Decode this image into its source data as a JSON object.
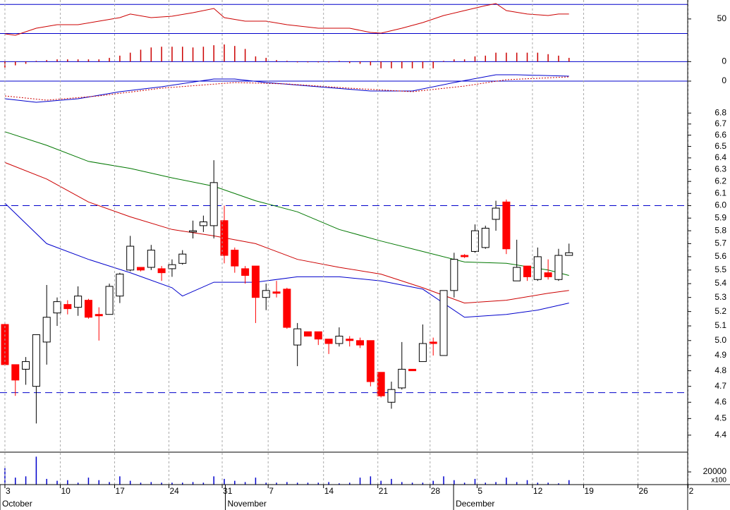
{
  "chart_data": [
    {
      "type": "line",
      "xlim": [
        -0.47,
        65.36
      ],
      "ylim": [
        16,
        76
      ],
      "yticks": [
        50
      ],
      "levels": [
        70,
        30
      ],
      "level_color": "#0000cc",
      "series": [
        {
          "color": "#cc0000",
          "x": [
            0,
            1,
            3,
            5,
            7,
            9,
            11,
            12,
            14,
            16,
            18,
            20,
            21,
            23,
            25,
            27,
            30,
            33,
            35,
            36,
            38,
            40,
            42,
            44,
            46,
            47,
            48,
            50,
            52,
            53,
            54
          ],
          "values": [
            29.5,
            27.6,
            37.3,
            42.1,
            42.1,
            47,
            51.8,
            56.7,
            51.8,
            53.7,
            58.6,
            64.4,
            51.8,
            47,
            47,
            42.1,
            37.3,
            37.3,
            31.5,
            30.5,
            37.3,
            45,
            54.7,
            61.5,
            68.3,
            71.2,
            61.5,
            56.7,
            54.7,
            56.7,
            56.7
          ]
        }
      ]
    },
    {
      "type": "bar",
      "xlim": [
        -0.47,
        65.36
      ],
      "ylim": [
        -1.2,
        2.4
      ],
      "yticks": [
        0
      ],
      "color": "#cc0000",
      "zero_color": "#0000cc",
      "x": [
        0,
        1,
        2,
        3,
        4,
        5,
        6,
        7,
        8,
        9,
        10,
        11,
        12,
        13,
        14,
        15,
        16,
        17,
        18,
        19,
        20,
        21,
        22,
        23,
        24,
        25,
        26,
        27,
        28,
        29,
        30,
        31,
        32,
        33,
        34,
        35,
        36,
        37,
        38,
        39,
        40,
        41,
        42,
        43,
        44,
        45,
        46,
        47,
        48,
        49,
        50,
        51,
        52,
        53,
        54
      ],
      "values": [
        -0.8,
        -0.5,
        -0.3,
        0.1,
        0.2,
        0.3,
        0.3,
        0.3,
        0.3,
        0.3,
        0.5,
        0.8,
        1.2,
        1.6,
        1.9,
        2.0,
        2.0,
        2.0,
        1.9,
        2.0,
        2.2,
        2.3,
        2.1,
        1.7,
        0.7,
        0.5,
        0.2,
        0.1,
        -0.1,
        -0.1,
        -0.1,
        -0.1,
        0.1,
        -0.2,
        -0.3,
        -0.5,
        -0.9,
        -0.9,
        -0.9,
        -0.9,
        -0.9,
        -0.9,
        0.1,
        0.3,
        0.3,
        0.7,
        0.8,
        1.2,
        1.2,
        1.2,
        1.2,
        1.2,
        1.0,
        0.8,
        0.5
      ]
    },
    {
      "type": "line",
      "xlim": [
        -0.47,
        65.36
      ],
      "ylim": [
        -3.3,
        1.5
      ],
      "yticks": [
        0
      ],
      "zero_color": "#0000cc",
      "series": [
        {
          "color": "#0000cc",
          "x": [
            0,
            3,
            7,
            11,
            15,
            20,
            22,
            25,
            30,
            35,
            39,
            43,
            47,
            49,
            54
          ],
          "values": [
            -2.5,
            -3.0,
            -2.5,
            -1.5,
            -0.8,
            0.3,
            0.3,
            -0.2,
            -0.8,
            -1.4,
            -1.4,
            -0.2,
            0.9,
            0.9,
            0.7
          ]
        },
        {
          "color": "#cc0000",
          "dashed": true,
          "x": [
            0,
            4,
            9,
            15,
            22,
            27,
            33,
            39,
            44,
            48,
            54
          ],
          "values": [
            -2.1,
            -2.7,
            -2.1,
            -1.0,
            -0.2,
            -0.4,
            -1.0,
            -1.5,
            -0.7,
            0.2,
            0.6
          ]
        }
      ]
    },
    {
      "type": "candlestick",
      "xlim": [
        -0.47,
        65.36
      ],
      "ylim": [
        4.3,
        6.88
      ],
      "log_scale": true,
      "yticks": [
        4.4,
        4.5,
        4.6,
        4.7,
        4.8,
        4.9,
        {
          "value": 5,
          "label": "5.0"
        },
        5.1,
        5.2,
        5.3,
        5.4,
        5.5,
        5.6,
        5.7,
        5.8,
        5.9,
        {
          "value": 6,
          "label": "6.0"
        },
        6.1,
        6.2,
        6.3,
        6.4,
        6.5,
        6.6,
        6.7,
        6.8
      ],
      "reference_lines": [
        6.0,
        4.66
      ],
      "reference_color": "#0000cc",
      "up_color": "#ffffff",
      "down_color": "#ff0000",
      "x": [
        0,
        1,
        2,
        3,
        4,
        5,
        6,
        7,
        8,
        9,
        10,
        11,
        12,
        13,
        14,
        15,
        16,
        17,
        18,
        19,
        20,
        21,
        22,
        23,
        24,
        25,
        26,
        27,
        28,
        29,
        30,
        31,
        32,
        33,
        34,
        35,
        36,
        37,
        38,
        39,
        40,
        41,
        42,
        43,
        44,
        45,
        46,
        47,
        48,
        49,
        50,
        51,
        52,
        53,
        54
      ],
      "open": [
        5.11,
        4.84,
        4.81,
        4.7,
        4.99,
        5.19,
        5.25,
        5.23,
        5.28,
        5.18,
        5.18,
        5.31,
        5.5,
        5.52,
        5.52,
        5.51,
        5.51,
        5.55,
        5.79,
        5.84,
        5.84,
        5.88,
        5.65,
        5.51,
        5.53,
        5.3,
        5.34,
        5.36,
        4.97,
        5.06,
        5.06,
        5.01,
        4.98,
        5.01,
        5.0,
        5.0,
        4.79,
        4.6,
        4.69,
        4.81,
        4.86,
        4.99,
        4.9,
        5.35,
        5.61,
        5.64,
        5.67,
        5.89,
        6.03,
        5.42,
        5.53,
        5.43,
        5.48,
        5.43,
        5.61
      ],
      "high": [
        5.12,
        4.84,
        4.89,
        5.04,
        5.39,
        5.3,
        5.28,
        5.38,
        5.29,
        5.23,
        5.4,
        5.48,
        5.76,
        5.52,
        5.69,
        5.53,
        5.58,
        5.65,
        5.88,
        5.92,
        6.38,
        6.0,
        5.67,
        5.53,
        5.53,
        5.4,
        5.42,
        5.37,
        5.12,
        5.06,
        5.06,
        5.01,
        5.09,
        5.03,
        5.02,
        5.0,
        4.79,
        4.73,
        4.99,
        4.81,
        5.11,
        5.02,
        5.35,
        5.63,
        5.62,
        5.85,
        5.84,
        6.04,
        6.05,
        5.73,
        5.53,
        5.67,
        5.58,
        5.66,
        5.7
      ],
      "low": [
        4.83,
        4.64,
        4.71,
        4.47,
        4.84,
        5.1,
        5.18,
        5.17,
        5.15,
        5.0,
        5.18,
        5.26,
        5.49,
        5.49,
        5.5,
        5.42,
        5.45,
        5.54,
        5.74,
        5.79,
        5.74,
        5.55,
        5.48,
        5.4,
        5.12,
        5.21,
        5.3,
        5.08,
        4.83,
        5.03,
        4.97,
        4.91,
        4.96,
        4.96,
        4.95,
        4.7,
        4.63,
        4.56,
        4.68,
        4.8,
        4.86,
        4.9,
        4.9,
        5.3,
        5.59,
        5.63,
        5.66,
        5.8,
        5.62,
        5.42,
        5.42,
        5.42,
        5.43,
        5.42,
        5.61
      ],
      "close": [
        4.84,
        4.74,
        4.86,
        5.04,
        5.16,
        5.27,
        5.22,
        5.31,
        5.16,
        5.17,
        5.38,
        5.47,
        5.68,
        5.5,
        5.65,
        5.48,
        5.54,
        5.62,
        5.8,
        5.87,
        6.19,
        5.61,
        5.53,
        5.46,
        5.3,
        5.35,
        5.33,
        5.09,
        5.08,
        5.03,
        5.01,
        4.98,
        5.03,
        5.0,
        4.97,
        4.73,
        4.64,
        4.68,
        4.81,
        4.8,
        4.98,
        4.98,
        5.35,
        5.58,
        5.6,
        5.8,
        5.82,
        5.98,
        5.66,
        5.52,
        5.45,
        5.6,
        5.45,
        5.61,
        5.63
      ],
      "series": [
        {
          "color": "#0000cc",
          "x": [
            0,
            4,
            8,
            12,
            16,
            17,
            20,
            24,
            28,
            32,
            36,
            40,
            44,
            48,
            51,
            54
          ],
          "values": [
            6.02,
            5.7,
            5.58,
            5.48,
            5.37,
            5.31,
            5.41,
            5.41,
            5.45,
            5.45,
            5.42,
            5.36,
            5.16,
            5.18,
            5.21,
            5.26
          ]
        },
        {
          "color": "#cc0000",
          "x": [
            0,
            4,
            8,
            12,
            16,
            20,
            24,
            28,
            32,
            36,
            40,
            44,
            48,
            52,
            54
          ],
          "values": [
            6.36,
            6.22,
            6.03,
            5.91,
            5.81,
            5.76,
            5.7,
            5.58,
            5.52,
            5.47,
            5.37,
            5.26,
            5.28,
            5.33,
            5.35
          ]
        },
        {
          "color": "#007700",
          "x": [
            0,
            4,
            8,
            12,
            16,
            20,
            24,
            28,
            32,
            36,
            40,
            44,
            48,
            52,
            54
          ],
          "values": [
            6.63,
            6.51,
            6.37,
            6.31,
            6.23,
            6.16,
            6.04,
            5.95,
            5.81,
            5.72,
            5.64,
            5.56,
            5.55,
            5.5,
            5.46
          ]
        }
      ]
    },
    {
      "type": "bar",
      "xlim": [
        -0.47,
        65.36
      ],
      "ylim": [
        0,
        50000
      ],
      "yticks": [
        20000
      ],
      "multiplier": "x100",
      "color": "#0000cc",
      "x": [
        0,
        1,
        2,
        3,
        4,
        5,
        6,
        7,
        8,
        9,
        10,
        11,
        12,
        13,
        14,
        15,
        16,
        17,
        18,
        19,
        20,
        21,
        22,
        23,
        24,
        25,
        26,
        27,
        28,
        29,
        30,
        31,
        32,
        33,
        34,
        35,
        36,
        37,
        38,
        39,
        40,
        41,
        42,
        43,
        44,
        45,
        46,
        47,
        48,
        49,
        50,
        51,
        52,
        53,
        54
      ],
      "values": [
        26000,
        11000,
        13000,
        44000,
        9000,
        6000,
        7000,
        3000,
        11000,
        7000,
        4000,
        13000,
        6000,
        3000,
        4000,
        3000,
        3000,
        3000,
        4000,
        3000,
        13000,
        9000,
        6000,
        4000,
        11000,
        3000,
        3000,
        4000,
        3000,
        3000,
        3000,
        4000,
        2000,
        3000,
        11000,
        13000,
        6000,
        9000,
        4000,
        3000,
        3000,
        6000,
        13000,
        7000,
        3000,
        9000,
        3000,
        4000,
        11000,
        4000,
        7000,
        3000,
        3000,
        2000,
        7000
      ],
      "xticks": [
        {
          "value": 0,
          "label": "3"
        },
        {
          "value": 5.3,
          "label": "10"
        },
        {
          "value": 10.5,
          "label": "17"
        },
        {
          "value": 15.7,
          "label": "24"
        },
        {
          "value": 20.8,
          "label": "31"
        },
        {
          "value": 25.2,
          "label": "7"
        },
        {
          "value": 30.5,
          "label": "14"
        },
        {
          "value": 35.7,
          "label": "21"
        },
        {
          "value": 40.7,
          "label": "28"
        },
        {
          "value": 45.2,
          "label": "5"
        },
        {
          "value": 50.5,
          "label": "12"
        },
        {
          "value": 55.4,
          "label": "19"
        },
        {
          "value": 60.6,
          "label": "26"
        },
        {
          "value": 65.4,
          "label": "2"
        }
      ],
      "months": [
        {
          "value": -0.47,
          "label": "October"
        },
        {
          "value": 21.1,
          "label": "November"
        },
        {
          "value": 42.95,
          "label": "December"
        }
      ]
    }
  ]
}
